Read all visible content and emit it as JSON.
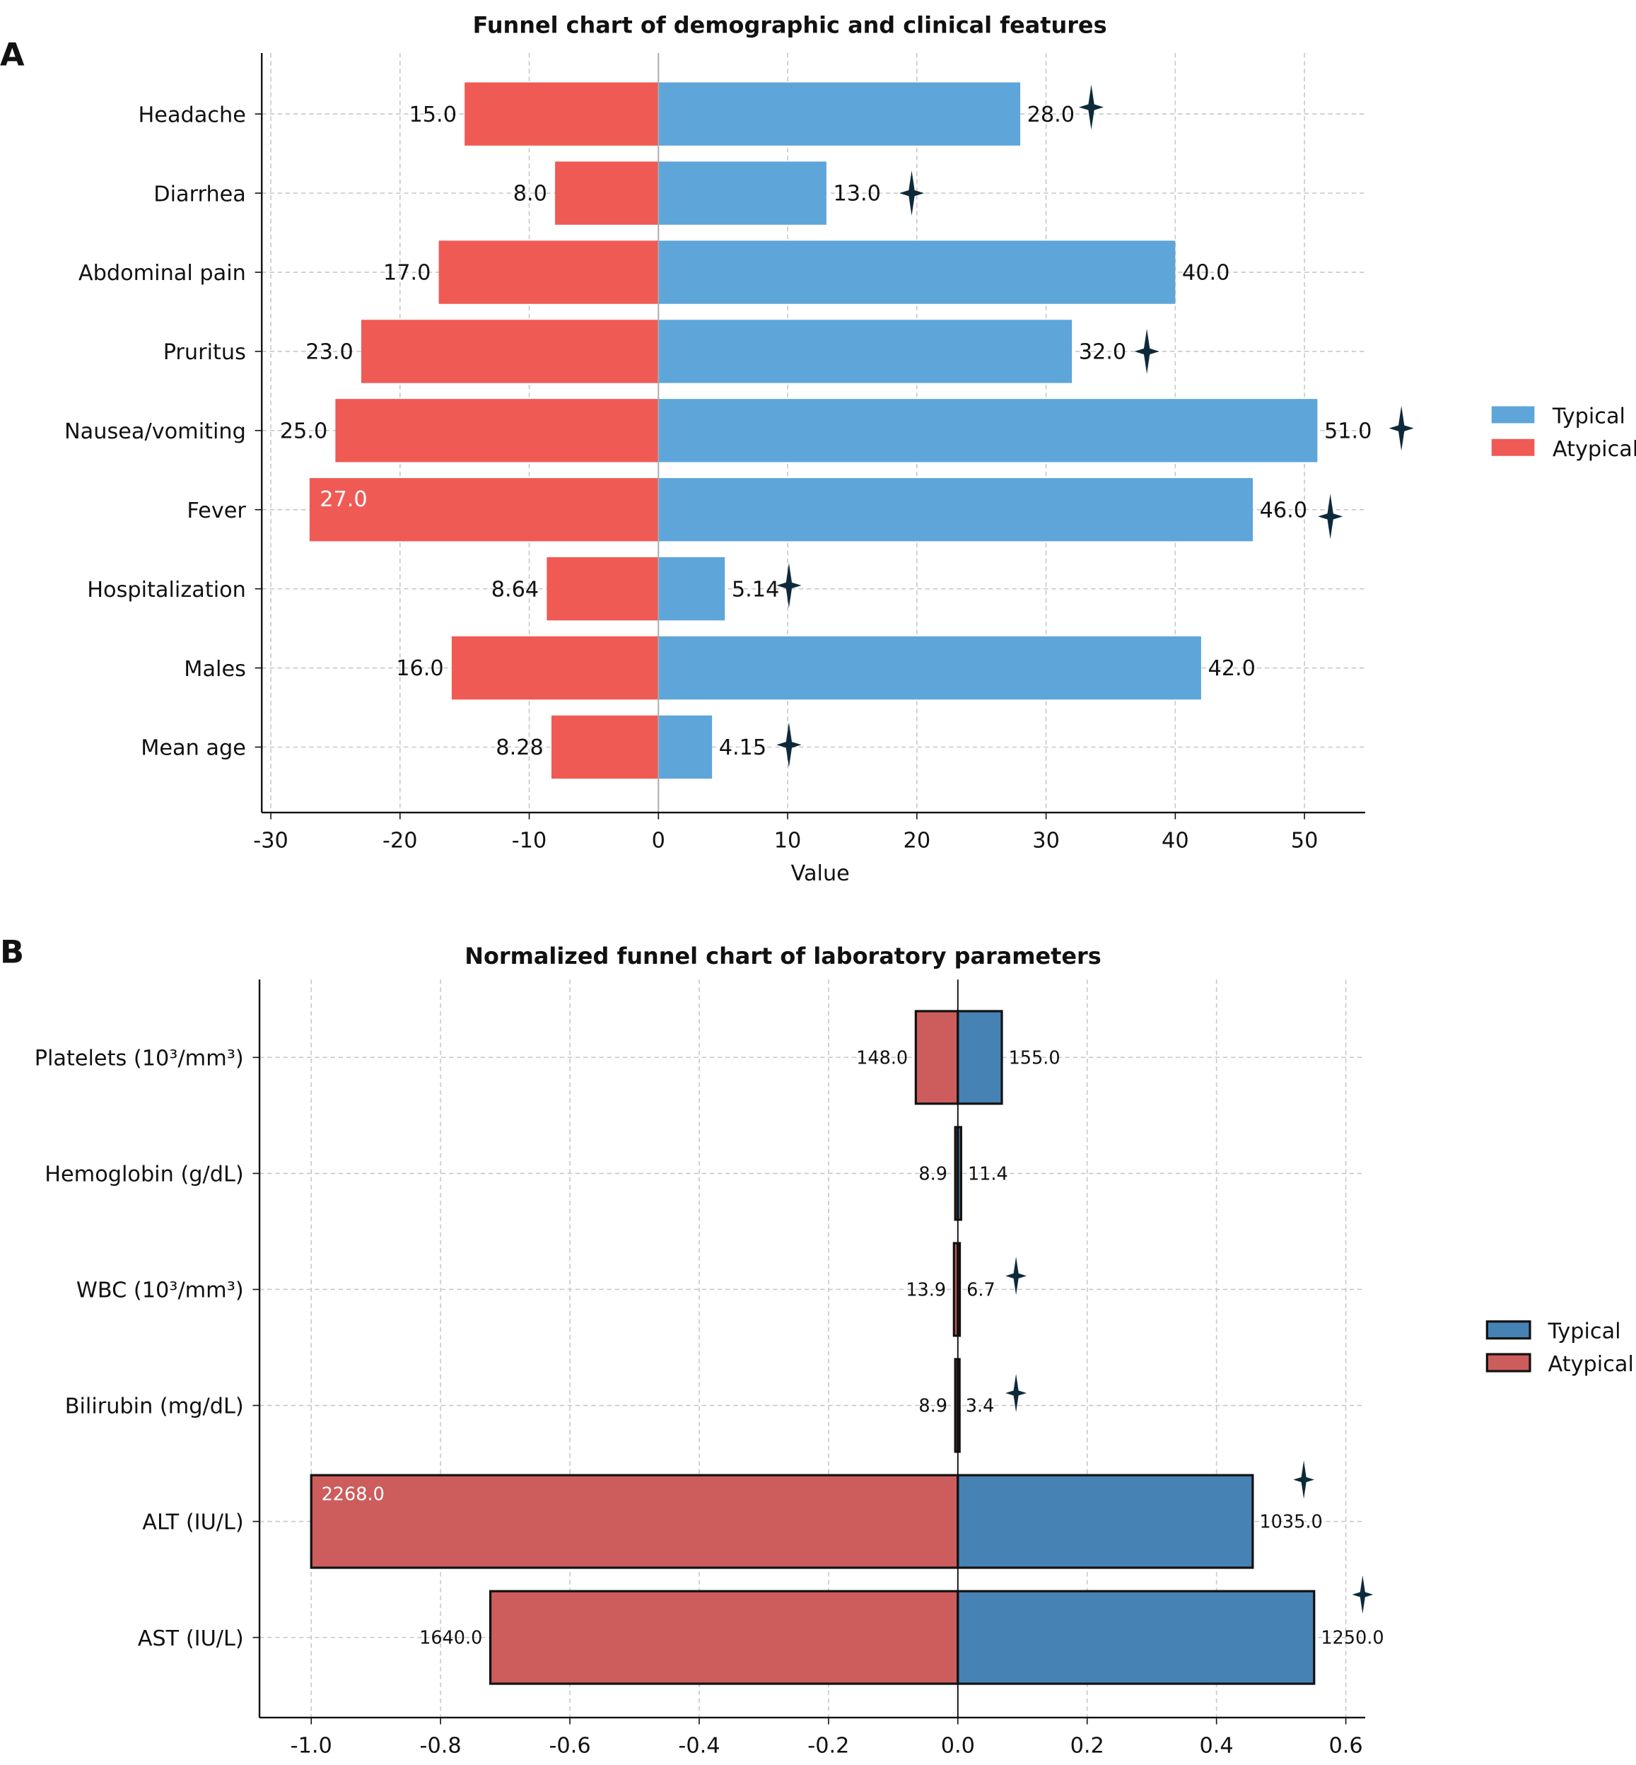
{
  "chart_data": [
    {
      "panel_label": "A",
      "type": "bar",
      "orientation": "horizontal-diverging",
      "title": "Funnel chart of demographic and clinical features",
      "xlabel": "Value",
      "ylabel": "",
      "xlim": [
        -30.7,
        54.7
      ],
      "xticks": [
        -30,
        -20,
        -10,
        0,
        10,
        20,
        30,
        40,
        50
      ],
      "grid": true,
      "legend_placement": "right",
      "categories": [
        "Headache",
        "Diarrhea",
        "Abdominal pain",
        "Pruritus",
        "Nausea/vomiting",
        "Fever",
        "Hospitalization",
        "Males",
        "Mean age"
      ],
      "series": [
        {
          "name": "Typical",
          "color": "#5ea5da",
          "values": [
            28.0,
            13.0,
            40.0,
            32.0,
            51.0,
            46.0,
            5.14,
            42.0,
            4.15
          ],
          "labels": [
            "28.0",
            "13.0",
            "40.0",
            "32.0",
            "51.0",
            "46.0",
            "5.14",
            "42.0",
            "4.15"
          ]
        },
        {
          "name": "Atypical",
          "color": "#f05a55",
          "values": [
            -15.0,
            -8.0,
            -17.0,
            -23.0,
            -25.0,
            -27.0,
            -8.64,
            -16.0,
            -8.28
          ],
          "labels": [
            "15.0",
            "8.0",
            "17.0",
            "23.0",
            "25.0",
            "27.0",
            "8.64",
            "16.0",
            "8.28"
          ]
        }
      ],
      "significance_markers": [
        {
          "category": "Headache",
          "x": 33.5
        },
        {
          "category": "Diarrhea",
          "x": 19.6
        },
        {
          "category": "Pruritus",
          "x": 37.8
        },
        {
          "category": "Nausea/vomiting",
          "x": 57.5
        },
        {
          "category": "Fever",
          "x": 52.0
        },
        {
          "category": "Hospitalization",
          "x": 10.1
        },
        {
          "category": "Mean age",
          "x": 10.1
        }
      ]
    },
    {
      "panel_label": "B",
      "type": "bar",
      "orientation": "horizontal-diverging",
      "title": "Normalized funnel chart of laboratory parameters",
      "xlabel": "",
      "ylabel": "",
      "xlim": [
        -1.08,
        0.63
      ],
      "xticks": [
        -1.0,
        -0.8,
        -0.6,
        -0.4,
        -0.2,
        0.0,
        0.2,
        0.4,
        0.6
      ],
      "xtick_labels": [
        "-1.0",
        "-0.8",
        "-0.6",
        "-0.4",
        "-0.2",
        "0.0",
        "0.2",
        "0.4",
        "0.6"
      ],
      "grid": true,
      "legend_placement": "right",
      "categories": [
        "Platelets (10³/mm³)",
        "Hemoglobin (g/dL)",
        "WBC (10³/mm³)",
        "Bilirubin (mg/dL)",
        "ALT (IU/L)",
        "AST (IU/L)"
      ],
      "series": [
        {
          "name": "Typical",
          "color": "#4682b4",
          "values": [
            0.068,
            0.005,
            0.003,
            0.0015,
            0.456,
            0.551
          ],
          "labels": [
            "155.0",
            "11.4",
            "6.7",
            "3.4",
            "1035.0",
            "1250.0"
          ]
        },
        {
          "name": "Atypical",
          "color": "#cd5c5c",
          "values": [
            -0.065,
            -0.004,
            -0.006,
            -0.004,
            -1.0,
            -0.723
          ],
          "labels": [
            "148.0",
            "8.9",
            "13.9",
            "8.9",
            "2268.0",
            "1640.0"
          ]
        }
      ],
      "significance_markers": [
        {
          "category": "WBC (10³/mm³)",
          "x": 0.09
        },
        {
          "category": "Bilirubin (mg/dL)",
          "x": 0.09
        },
        {
          "category": "ALT (IU/L)",
          "x": 0.535
        },
        {
          "category": "AST (IU/L)",
          "x": 0.626
        }
      ],
      "marker_color": "#0d2a3a"
    }
  ]
}
